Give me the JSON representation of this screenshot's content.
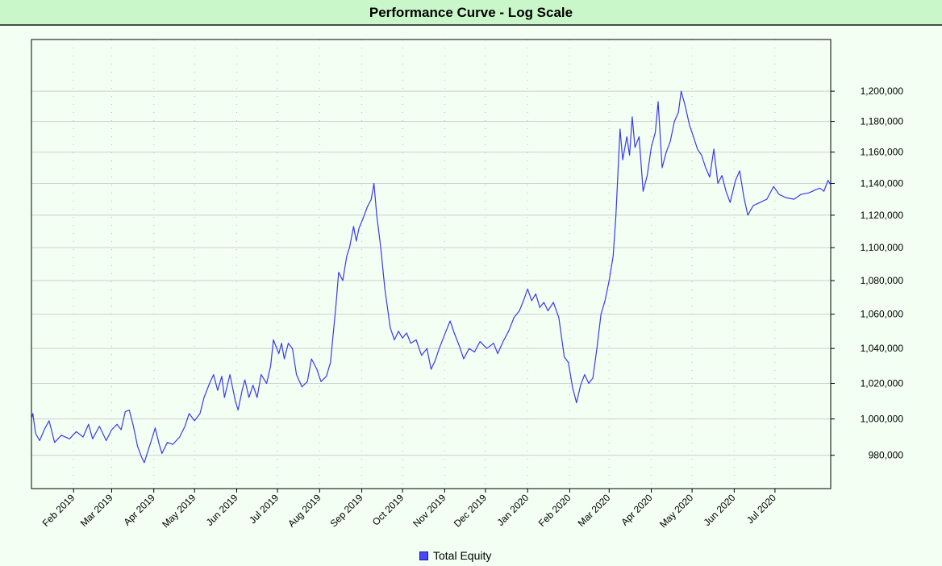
{
  "chart_data": {
    "type": "line",
    "title": "Performance Curve - Log Scale",
    "xlabel": "",
    "ylabel": "",
    "y_scale": "log",
    "ylim": [
      962000,
      1235000
    ],
    "xlim": [
      "2019-01-01",
      "2020-08-11"
    ],
    "grid": true,
    "legend_position": "bottom-center",
    "colors": {
      "line": "#3a3af0",
      "background": "#f2fff2",
      "title_band": "#c9f7c9"
    },
    "y_ticks": [
      {
        "value": 980000,
        "label": "980,000"
      },
      {
        "value": 1000000,
        "label": "1,000,000"
      },
      {
        "value": 1020000,
        "label": "1,020,000"
      },
      {
        "value": 1040000,
        "label": "1,040,000"
      },
      {
        "value": 1060000,
        "label": "1,060,000"
      },
      {
        "value": 1080000,
        "label": "1,080,000"
      },
      {
        "value": 1100000,
        "label": "1,100,000"
      },
      {
        "value": 1120000,
        "label": "1,120,000"
      },
      {
        "value": 1140000,
        "label": "1,140,000"
      },
      {
        "value": 1160000,
        "label": "1,160,000"
      },
      {
        "value": 1180000,
        "label": "1,180,000"
      },
      {
        "value": 1200000,
        "label": "1,200,000"
      }
    ],
    "x_ticks": [
      {
        "date": "2019-02-01",
        "label": "Feb 2019"
      },
      {
        "date": "2019-03-01",
        "label": "Mar 2019"
      },
      {
        "date": "2019-04-01",
        "label": "Apr 2019"
      },
      {
        "date": "2019-05-01",
        "label": "May 2019"
      },
      {
        "date": "2019-06-01",
        "label": "Jun 2019"
      },
      {
        "date": "2019-07-01",
        "label": "Jul 2019"
      },
      {
        "date": "2019-08-01",
        "label": "Aug 2019"
      },
      {
        "date": "2019-09-01",
        "label": "Sep 2019"
      },
      {
        "date": "2019-10-01",
        "label": "Oct 2019"
      },
      {
        "date": "2019-11-01",
        "label": "Nov 2019"
      },
      {
        "date": "2019-12-01",
        "label": "Dec 2019"
      },
      {
        "date": "2020-01-01",
        "label": "Jan 2020"
      },
      {
        "date": "2020-02-01",
        "label": "Feb 2020"
      },
      {
        "date": "2020-03-01",
        "label": "Mar 2020"
      },
      {
        "date": "2020-04-01",
        "label": "Apr 2020"
      },
      {
        "date": "2020-05-01",
        "label": "May 2020"
      },
      {
        "date": "2020-06-01",
        "label": "Jun 2020"
      },
      {
        "date": "2020-07-01",
        "label": "Jul 2020"
      }
    ],
    "series": [
      {
        "name": "Total Equity",
        "points": [
          [
            "2019-01-01",
            1000000
          ],
          [
            "2019-01-02",
            1003000
          ],
          [
            "2019-01-04",
            992000
          ],
          [
            "2019-01-07",
            988000
          ],
          [
            "2019-01-11",
            995000
          ],
          [
            "2019-01-14",
            999000
          ],
          [
            "2019-01-18",
            987000
          ],
          [
            "2019-01-23",
            991000
          ],
          [
            "2019-01-29",
            989000
          ],
          [
            "2019-02-03",
            993000
          ],
          [
            "2019-02-08",
            990000
          ],
          [
            "2019-02-12",
            997000
          ],
          [
            "2019-02-15",
            989000
          ],
          [
            "2019-02-20",
            996000
          ],
          [
            "2019-02-25",
            988000
          ],
          [
            "2019-03-01",
            994000
          ],
          [
            "2019-03-05",
            997000
          ],
          [
            "2019-03-08",
            994000
          ],
          [
            "2019-03-11",
            1004000
          ],
          [
            "2019-03-14",
            1005000
          ],
          [
            "2019-03-17",
            996000
          ],
          [
            "2019-03-20",
            985000
          ],
          [
            "2019-03-23",
            979000
          ],
          [
            "2019-03-25",
            976000
          ],
          [
            "2019-03-28",
            983000
          ],
          [
            "2019-03-31",
            990000
          ],
          [
            "2019-04-02",
            995000
          ],
          [
            "2019-04-05",
            986000
          ],
          [
            "2019-04-07",
            981000
          ],
          [
            "2019-04-11",
            987000
          ],
          [
            "2019-04-15",
            986000
          ],
          [
            "2019-04-20",
            990000
          ],
          [
            "2019-04-24",
            996000
          ],
          [
            "2019-04-27",
            1003000
          ],
          [
            "2019-05-01",
            999000
          ],
          [
            "2019-05-05",
            1003000
          ],
          [
            "2019-05-08",
            1012000
          ],
          [
            "2019-05-12",
            1020000
          ],
          [
            "2019-05-15",
            1025000
          ],
          [
            "2019-05-18",
            1016000
          ],
          [
            "2019-05-21",
            1024000
          ],
          [
            "2019-05-23",
            1012000
          ],
          [
            "2019-05-27",
            1025000
          ],
          [
            "2019-05-31",
            1010000
          ],
          [
            "2019-06-02",
            1005000
          ],
          [
            "2019-06-05",
            1016000
          ],
          [
            "2019-06-07",
            1022000
          ],
          [
            "2019-06-10",
            1012000
          ],
          [
            "2019-06-13",
            1019000
          ],
          [
            "2019-06-16",
            1012000
          ],
          [
            "2019-06-19",
            1025000
          ],
          [
            "2019-06-23",
            1020000
          ],
          [
            "2019-06-26",
            1030000
          ],
          [
            "2019-06-28",
            1045000
          ],
          [
            "2019-07-02",
            1037000
          ],
          [
            "2019-07-04",
            1043000
          ],
          [
            "2019-07-06",
            1034000
          ],
          [
            "2019-07-09",
            1043000
          ],
          [
            "2019-07-12",
            1040000
          ],
          [
            "2019-07-15",
            1025000
          ],
          [
            "2019-07-19",
            1018000
          ],
          [
            "2019-07-23",
            1021000
          ],
          [
            "2019-07-26",
            1034000
          ],
          [
            "2019-07-30",
            1028000
          ],
          [
            "2019-08-02",
            1021000
          ],
          [
            "2019-08-06",
            1024000
          ],
          [
            "2019-08-09",
            1032000
          ],
          [
            "2019-08-13",
            1065000
          ],
          [
            "2019-08-15",
            1085000
          ],
          [
            "2019-08-18",
            1080000
          ],
          [
            "2019-08-21",
            1095000
          ],
          [
            "2019-08-23",
            1100000
          ],
          [
            "2019-08-26",
            1113000
          ],
          [
            "2019-08-28",
            1104000
          ],
          [
            "2019-08-30",
            1112000
          ],
          [
            "2019-09-02",
            1118000
          ],
          [
            "2019-09-05",
            1125000
          ],
          [
            "2019-09-08",
            1130000
          ],
          [
            "2019-09-10",
            1140000
          ],
          [
            "2019-09-12",
            1120000
          ],
          [
            "2019-09-15",
            1100000
          ],
          [
            "2019-09-18",
            1075000
          ],
          [
            "2019-09-22",
            1052000
          ],
          [
            "2019-09-25",
            1045000
          ],
          [
            "2019-09-28",
            1050000
          ],
          [
            "2019-10-01",
            1046000
          ],
          [
            "2019-10-04",
            1049000
          ],
          [
            "2019-10-07",
            1043000
          ],
          [
            "2019-10-11",
            1045000
          ],
          [
            "2019-10-15",
            1036000
          ],
          [
            "2019-10-19",
            1040000
          ],
          [
            "2019-10-22",
            1028000
          ],
          [
            "2019-10-25",
            1033000
          ],
          [
            "2019-10-28",
            1040000
          ],
          [
            "2019-11-02",
            1050000
          ],
          [
            "2019-11-05",
            1056000
          ],
          [
            "2019-11-08",
            1049000
          ],
          [
            "2019-11-12",
            1041000
          ],
          [
            "2019-11-15",
            1034000
          ],
          [
            "2019-11-19",
            1040000
          ],
          [
            "2019-11-23",
            1038000
          ],
          [
            "2019-11-27",
            1044000
          ],
          [
            "2019-12-02",
            1040000
          ],
          [
            "2019-12-07",
            1043000
          ],
          [
            "2019-12-10",
            1037000
          ],
          [
            "2019-12-14",
            1044000
          ],
          [
            "2019-12-18",
            1050000
          ],
          [
            "2019-12-22",
            1058000
          ],
          [
            "2019-12-26",
            1062000
          ],
          [
            "2019-12-29",
            1068000
          ],
          [
            "2020-01-01",
            1075000
          ],
          [
            "2020-01-04",
            1068000
          ],
          [
            "2020-01-07",
            1072000
          ],
          [
            "2020-01-10",
            1064000
          ],
          [
            "2020-01-13",
            1067000
          ],
          [
            "2020-01-16",
            1062000
          ],
          [
            "2020-01-20",
            1067000
          ],
          [
            "2020-01-24",
            1058000
          ],
          [
            "2020-01-28",
            1035000
          ],
          [
            "2020-01-31",
            1032000
          ],
          [
            "2020-02-03",
            1018000
          ],
          [
            "2020-02-06",
            1009000
          ],
          [
            "2020-02-09",
            1019000
          ],
          [
            "2020-02-12",
            1025000
          ],
          [
            "2020-02-15",
            1020000
          ],
          [
            "2020-02-18",
            1023000
          ],
          [
            "2020-02-21",
            1040000
          ],
          [
            "2020-02-24",
            1060000
          ],
          [
            "2020-02-27",
            1068000
          ],
          [
            "2020-03-01",
            1080000
          ],
          [
            "2020-03-04",
            1095000
          ],
          [
            "2020-03-06",
            1120000
          ],
          [
            "2020-03-09",
            1175000
          ],
          [
            "2020-03-11",
            1155000
          ],
          [
            "2020-03-14",
            1170000
          ],
          [
            "2020-03-16",
            1158000
          ],
          [
            "2020-03-18",
            1183000
          ],
          [
            "2020-03-20",
            1163000
          ],
          [
            "2020-03-23",
            1170000
          ],
          [
            "2020-03-26",
            1135000
          ],
          [
            "2020-03-29",
            1145000
          ],
          [
            "2020-04-01",
            1163000
          ],
          [
            "2020-04-04",
            1173000
          ],
          [
            "2020-04-06",
            1193000
          ],
          [
            "2020-04-09",
            1150000
          ],
          [
            "2020-04-12",
            1160000
          ],
          [
            "2020-04-15",
            1167000
          ],
          [
            "2020-04-18",
            1180000
          ],
          [
            "2020-04-21",
            1186000
          ],
          [
            "2020-04-23",
            1200000
          ],
          [
            "2020-04-26",
            1190000
          ],
          [
            "2020-04-29",
            1178000
          ],
          [
            "2020-05-02",
            1170000
          ],
          [
            "2020-05-05",
            1162000
          ],
          [
            "2020-05-08",
            1158000
          ],
          [
            "2020-05-11",
            1150000
          ],
          [
            "2020-05-14",
            1144000
          ],
          [
            "2020-05-17",
            1162000
          ],
          [
            "2020-05-20",
            1140000
          ],
          [
            "2020-05-23",
            1145000
          ],
          [
            "2020-05-26",
            1135000
          ],
          [
            "2020-05-29",
            1128000
          ],
          [
            "2020-06-02",
            1142000
          ],
          [
            "2020-06-05",
            1148000
          ],
          [
            "2020-06-08",
            1132000
          ],
          [
            "2020-06-11",
            1120000
          ],
          [
            "2020-06-15",
            1126000
          ],
          [
            "2020-06-20",
            1128000
          ],
          [
            "2020-06-25",
            1130000
          ],
          [
            "2020-06-30",
            1138000
          ],
          [
            "2020-07-04",
            1133000
          ],
          [
            "2020-07-09",
            1131000
          ],
          [
            "2020-07-15",
            1130000
          ],
          [
            "2020-07-20",
            1133000
          ],
          [
            "2020-07-26",
            1134000
          ],
          [
            "2020-07-31",
            1136000
          ],
          [
            "2020-08-03",
            1137000
          ],
          [
            "2020-08-06",
            1135000
          ],
          [
            "2020-08-09",
            1142000
          ],
          [
            "2020-08-11",
            1139000
          ]
        ]
      }
    ]
  }
}
